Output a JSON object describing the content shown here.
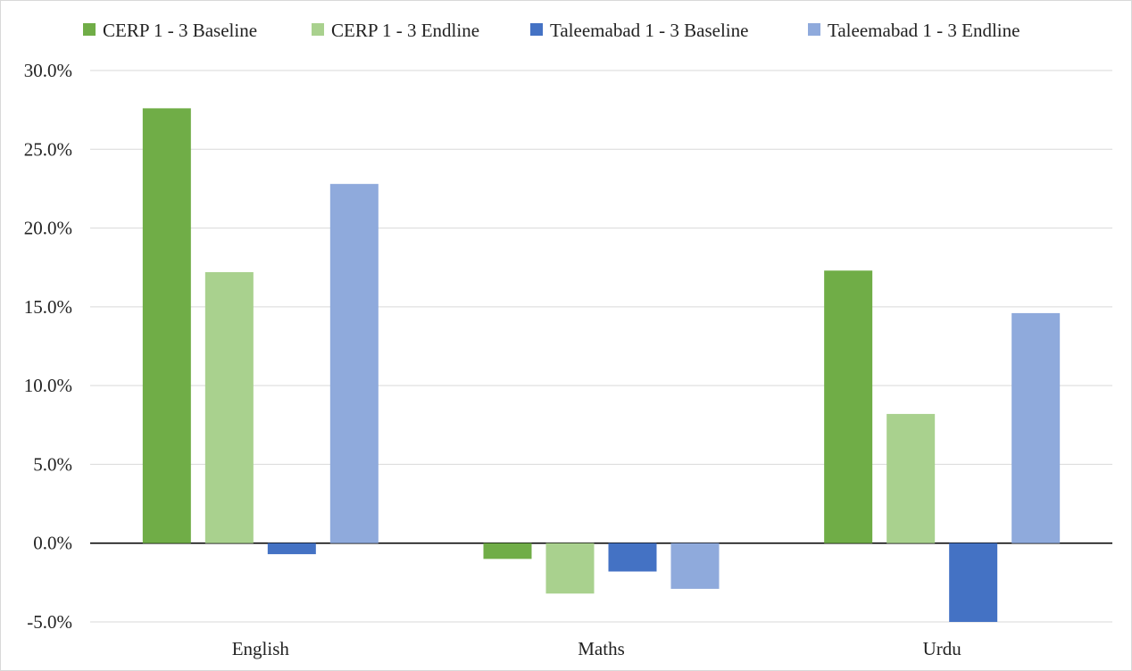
{
  "chart_data": {
    "type": "bar",
    "title": "",
    "xlabel": "",
    "ylabel": "",
    "categories": [
      "English",
      "Maths",
      "Urdu"
    ],
    "series": [
      {
        "name": "CERP 1 - 3 Baseline",
        "color": "#70ad47",
        "values": [
          27.6,
          -1.0,
          17.3
        ]
      },
      {
        "name": "CERP 1 - 3 Endline",
        "color": "#a9d18e",
        "values": [
          17.2,
          -3.2,
          8.2
        ]
      },
      {
        "name": "Taleemabad 1 - 3 Baseline",
        "color": "#4472c4",
        "values": [
          -0.7,
          -1.8,
          -5.0
        ]
      },
      {
        "name": "Taleemabad 1 - 3 Endline",
        "color": "#8faadc",
        "values": [
          22.8,
          -2.9,
          14.6
        ]
      }
    ],
    "ylim": [
      -5,
      30
    ],
    "yticks": [
      -5,
      0,
      5,
      10,
      15,
      20,
      25,
      30
    ],
    "ytick_labels": [
      "-5.0%",
      "0.0%",
      "5.0%",
      "10.0%",
      "15.0%",
      "20.0%",
      "25.0%",
      "30.0%"
    ],
    "grid": true,
    "legend_position": "top"
  }
}
